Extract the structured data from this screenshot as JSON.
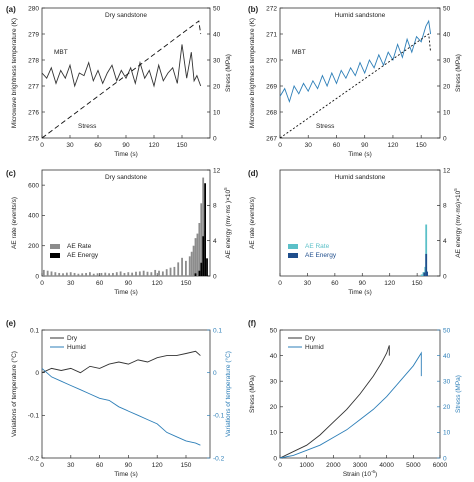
{
  "figure": {
    "panels": [
      {
        "letter": "(a)",
        "title": "Dry sandstone",
        "ylabel": "Microwave brightness temperature (K)",
        "y2label": "Stress (MPa)",
        "xlabel": "Time (s)",
        "annotations": [
          "MBT",
          "Stress"
        ]
      },
      {
        "letter": "(b)",
        "title": "Humid sandstone",
        "ylabel": "Microwave brightness temperature (K)",
        "y2label": "Stress (MPa)",
        "xlabel": "Time (s)",
        "annotations": [
          "MBT",
          "Stress"
        ]
      },
      {
        "letter": "(c)",
        "title": "Dry sandstone",
        "ylabel": "AE rate (events/s)",
        "y2label": "AE energy (mv·ms )×10",
        "y2sup": "5",
        "xlabel": "Time (s)",
        "legend": [
          "AE Rate",
          "AE Energy"
        ]
      },
      {
        "letter": "(d)",
        "title": "Humid sandstone",
        "ylabel": "AE rate (events/s)",
        "y2label": "AE energy (mv·ms)×10",
        "y2sup": "5",
        "xlabel": "Time (s)",
        "legend": [
          "AE Rate",
          "AE Energy"
        ]
      },
      {
        "letter": "(e)",
        "title": "",
        "ylabel": "Variations of temperature (°C)",
        "y2label": "Variations of temperature (°C)",
        "xlabel": "Time (s)",
        "legend": [
          "Dry",
          "Humid"
        ]
      },
      {
        "letter": "(f)",
        "title": "",
        "ylabel": "Stress (MPa)",
        "y2label": "Stress (MPa)",
        "xlabel": "Strain (10",
        "xsup": "-6",
        "xclose": ")",
        "legend": [
          "Dry",
          "Humid"
        ]
      }
    ]
  },
  "chart_data": [
    {
      "type": "line",
      "panel": "a",
      "title": "Dry sandstone",
      "xlabel": "Time (s)",
      "ylabel": "Microwave brightness temperature (K)",
      "y2label": "Stress (MPa)",
      "xlim": [
        0,
        180
      ],
      "ylim": [
        275,
        280
      ],
      "y2lim": [
        0,
        50
      ],
      "xticks": [
        0,
        30,
        60,
        90,
        120,
        150
      ],
      "yticks": [
        275,
        276,
        277,
        278,
        279,
        280
      ],
      "y2ticks": [
        0,
        10,
        20,
        30,
        40,
        50
      ],
      "series": [
        {
          "name": "MBT",
          "axis": "left",
          "color": "#333333",
          "style": "solid",
          "x": [
            0,
            5,
            10,
            15,
            20,
            25,
            30,
            35,
            40,
            45,
            50,
            55,
            60,
            65,
            70,
            75,
            80,
            85,
            90,
            95,
            100,
            105,
            110,
            115,
            120,
            125,
            130,
            135,
            140,
            145,
            150,
            155,
            160,
            163,
            166,
            170
          ],
          "y": [
            277.5,
            277.3,
            277.7,
            277.1,
            277.6,
            277.3,
            277.8,
            277.0,
            277.5,
            277.4,
            277.9,
            277.2,
            277.6,
            277.1,
            277.5,
            277.8,
            277.2,
            277.6,
            277.3,
            277.7,
            277.1,
            277.9,
            277.3,
            277.6,
            277.0,
            277.8,
            277.2,
            277.5,
            277.7,
            277.1,
            278.6,
            277.3,
            278.3,
            277.2,
            277.4,
            277.0
          ]
        },
        {
          "name": "Stress",
          "axis": "right",
          "color": "#111111",
          "style": "dashed",
          "x": [
            0,
            168,
            170
          ],
          "y": [
            0,
            45,
            40
          ]
        }
      ]
    },
    {
      "type": "line",
      "panel": "b",
      "title": "Humid sandstone",
      "xlabel": "Time (s)",
      "ylabel": "Microwave brightness temperature (K)",
      "y2label": "Stress (MPa)",
      "xlim": [
        0,
        170
      ],
      "ylim": [
        267,
        272
      ],
      "y2lim": [
        0,
        50
      ],
      "xticks": [
        0,
        30,
        60,
        90,
        120,
        150
      ],
      "yticks": [
        267,
        268,
        269,
        270,
        271,
        272
      ],
      "y2ticks": [
        0,
        10,
        20,
        30,
        40,
        50
      ],
      "series": [
        {
          "name": "MBT",
          "axis": "left",
          "color": "#2e7fb8",
          "style": "solid",
          "x": [
            0,
            5,
            10,
            15,
            20,
            25,
            30,
            35,
            40,
            45,
            50,
            55,
            60,
            65,
            70,
            75,
            80,
            85,
            90,
            95,
            100,
            105,
            110,
            115,
            120,
            125,
            130,
            135,
            140,
            145,
            150,
            155,
            158,
            160
          ],
          "y": [
            268.6,
            268.9,
            268.4,
            269.0,
            268.7,
            269.1,
            268.8,
            269.2,
            268.9,
            269.4,
            269.0,
            269.5,
            269.1,
            269.6,
            269.3,
            269.7,
            269.4,
            269.9,
            269.5,
            270.0,
            269.7,
            270.2,
            269.8,
            270.3,
            270.0,
            270.6,
            270.1,
            270.8,
            270.3,
            270.9,
            270.7,
            271.3,
            271.5,
            271.0
          ]
        },
        {
          "name": "Stress",
          "axis": "right",
          "color": "#111111",
          "style": "dotted",
          "x": [
            0,
            158,
            160
          ],
          "y": [
            0,
            40,
            33
          ]
        }
      ]
    },
    {
      "type": "bar",
      "panel": "c",
      "title": "Dry sandstone",
      "xlabel": "Time (s)",
      "ylabel": "AE rate (events/s)",
      "y2label": "AE energy (mv·ms )×10^5",
      "xlim": [
        0,
        175
      ],
      "ylim": [
        0,
        700
      ],
      "y2lim": [
        0,
        12
      ],
      "xticks": [
        0,
        30,
        60,
        90,
        120,
        150
      ],
      "yticks": [
        0,
        200,
        400,
        600
      ],
      "y2ticks": [
        0,
        4,
        8,
        12
      ],
      "series": [
        {
          "name": "AE Rate",
          "axis": "left",
          "color": "#8c8c8c",
          "x": [
            2,
            6,
            10,
            14,
            18,
            22,
            26,
            30,
            34,
            38,
            42,
            46,
            50,
            54,
            58,
            62,
            66,
            70,
            74,
            78,
            82,
            86,
            90,
            94,
            98,
            102,
            106,
            110,
            114,
            118,
            122,
            126,
            130,
            134,
            138,
            142,
            146,
            150,
            154,
            156,
            158,
            160,
            162,
            164,
            166,
            168,
            170
          ],
          "y": [
            40,
            35,
            30,
            25,
            20,
            18,
            22,
            25,
            20,
            15,
            18,
            20,
            25,
            15,
            18,
            20,
            22,
            18,
            20,
            25,
            30,
            20,
            25,
            22,
            28,
            30,
            35,
            28,
            25,
            40,
            35,
            30,
            45,
            55,
            60,
            90,
            120,
            100,
            130,
            160,
            200,
            250,
            280,
            350,
            480,
            650,
            300
          ]
        },
        {
          "name": "AE Energy",
          "axis": "right",
          "color": "#000000",
          "x": [
            160,
            164,
            166,
            168,
            170,
            172
          ],
          "y": [
            0.3,
            0.6,
            1.5,
            4.5,
            10.5,
            2.0
          ]
        }
      ]
    },
    {
      "type": "bar",
      "panel": "d",
      "title": "Humid sandstone",
      "xlabel": "Time (s)",
      "ylabel": "AE rate (events/s)",
      "y2label": "AE energy (mv·ms)×10^5",
      "xlim": [
        0,
        175
      ],
      "ylim": [
        0,
        700
      ],
      "y2lim": [
        0,
        12
      ],
      "xticks": [
        0,
        30,
        60,
        90,
        120,
        150
      ],
      "yticks": [],
      "y2ticks": [
        0,
        4,
        8,
        12
      ],
      "series": [
        {
          "name": "AE Rate",
          "axis": "left",
          "color": "#5bc0c8",
          "x": [
            155,
            157,
            159,
            160,
            161
          ],
          "y": [
            10,
            25,
            60,
            340,
            20
          ]
        },
        {
          "name": "AE Energy",
          "axis": "right",
          "color": "#1f4e8c",
          "x": [
            158,
            160,
            161
          ],
          "y": [
            0.4,
            2.5,
            0.5
          ]
        }
      ]
    },
    {
      "type": "line",
      "panel": "e",
      "xlabel": "Time (s)",
      "ylabel": "Variations of temperature (°C)",
      "y2label": "Variations of temperature (°C)",
      "xlim": [
        0,
        175
      ],
      "ylim": [
        -0.2,
        0.1
      ],
      "y2lim": [
        -0.2,
        0.1
      ],
      "xticks": [
        0,
        30,
        60,
        90,
        120,
        150
      ],
      "yticks": [
        -0.2,
        -0.1,
        0.0,
        0.1
      ],
      "y2ticks": [
        -0.2,
        -0.1,
        0.0,
        0.1
      ],
      "series": [
        {
          "name": "Dry",
          "axis": "left",
          "color": "#333333",
          "x": [
            0,
            10,
            20,
            30,
            40,
            50,
            60,
            70,
            80,
            90,
            100,
            110,
            120,
            130,
            140,
            150,
            160,
            165
          ],
          "y": [
            0.0,
            0.01,
            0.005,
            0.01,
            0.0,
            0.015,
            0.01,
            0.02,
            0.025,
            0.02,
            0.03,
            0.025,
            0.035,
            0.04,
            0.04,
            0.045,
            0.05,
            0.04
          ]
        },
        {
          "name": "Humid",
          "axis": "right",
          "color": "#2e7fb8",
          "x": [
            0,
            10,
            20,
            30,
            40,
            50,
            60,
            70,
            80,
            90,
            100,
            110,
            120,
            130,
            140,
            150,
            160,
            165
          ],
          "y": [
            0.01,
            -0.01,
            -0.02,
            -0.03,
            -0.04,
            -0.05,
            -0.06,
            -0.065,
            -0.08,
            -0.09,
            -0.1,
            -0.11,
            -0.12,
            -0.14,
            -0.15,
            -0.16,
            -0.165,
            -0.17
          ]
        }
      ]
    },
    {
      "type": "line",
      "panel": "f",
      "xlabel": "Strain (10^-6)",
      "ylabel": "Stress (MPa)",
      "y2label": "Stress (MPa)",
      "xlim": [
        0,
        6000
      ],
      "ylim": [
        0,
        50
      ],
      "y2lim": [
        0,
        50
      ],
      "xticks": [
        0,
        1000,
        2000,
        3000,
        4000,
        5000,
        6000
      ],
      "yticks": [
        0,
        10,
        20,
        30,
        40,
        50
      ],
      "y2ticks": [
        0,
        10,
        20,
        30,
        40,
        50
      ],
      "series": [
        {
          "name": "Dry",
          "axis": "left",
          "color": "#333333",
          "x": [
            0,
            300,
            600,
            1000,
            1500,
            2000,
            2500,
            3000,
            3500,
            3800,
            4000,
            4100,
            4100
          ],
          "y": [
            0,
            1.5,
            3,
            5,
            9,
            14,
            19,
            25,
            32,
            37,
            41,
            44,
            40
          ]
        },
        {
          "name": "Humid",
          "axis": "right",
          "color": "#2e7fb8",
          "x": [
            0,
            500,
            1000,
            1500,
            2000,
            2500,
            3000,
            3500,
            4000,
            4500,
            5000,
            5300,
            5300
          ],
          "y": [
            0,
            1,
            3,
            5,
            8,
            11,
            15,
            19,
            24,
            30,
            36,
            41,
            32
          ]
        }
      ]
    }
  ]
}
